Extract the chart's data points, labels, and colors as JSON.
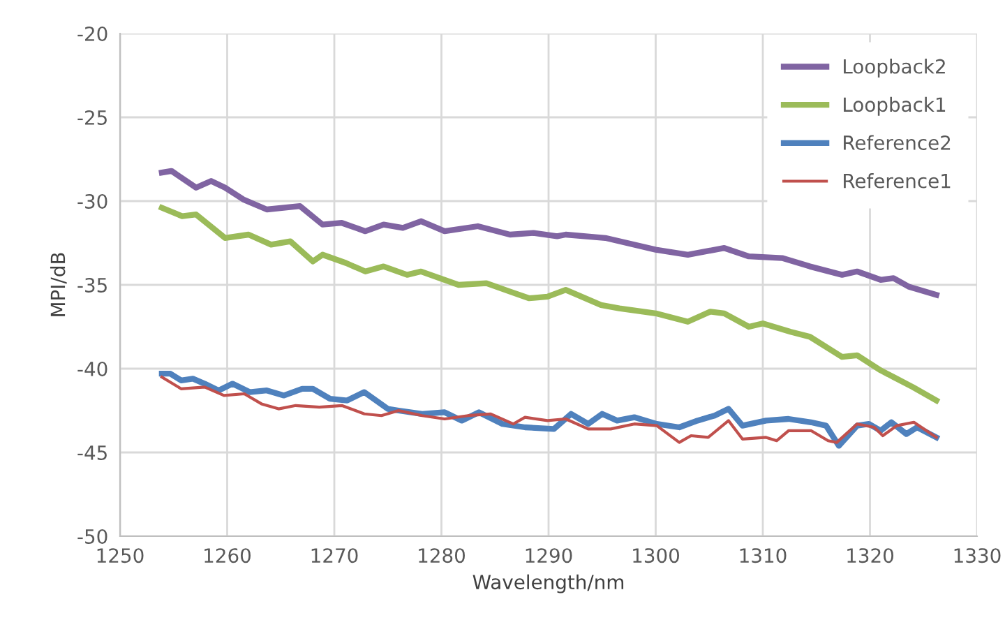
{
  "chart_data": {
    "type": "line",
    "xlabel": "Wavelength/nm",
    "ylabel": "MPI/dB",
    "xlim": [
      1250,
      1330
    ],
    "xticks": [
      1250,
      1260,
      1270,
      1280,
      1290,
      1300,
      1310,
      1320,
      1330
    ],
    "ylim": [
      -50,
      -20
    ],
    "yticks": [
      -50,
      -45,
      -40,
      -35,
      -30,
      -25,
      -20
    ],
    "grid": true,
    "legend": "top right",
    "marker": "none",
    "line_style": "solid",
    "series": [
      {
        "name": "Loopback2",
        "color": "#8064a2",
        "x": [
          1253.9,
          1254.8,
          1257.1,
          1258.5,
          1259.8,
          1261.5,
          1263.7,
          1266.8,
          1268.9,
          1270.7,
          1272.9,
          1274.6,
          1276.4,
          1278.1,
          1280.3,
          1283.4,
          1286.4,
          1288.6,
          1290.8,
          1291.6,
          1295.3,
          1300,
          1303,
          1306.4,
          1308.7,
          1311.8,
          1314.4,
          1317.4,
          1318.8,
          1321,
          1322.2,
          1323.6,
          1326.2
        ],
        "values": [
          -28.3,
          -28.2,
          -29.2,
          -28.8,
          -29.2,
          -29.9,
          -30.5,
          -30.3,
          -31.4,
          -31.3,
          -31.8,
          -31.4,
          -31.6,
          -31.2,
          -31.8,
          -31.5,
          -32.0,
          -31.9,
          -32.1,
          -32.0,
          -32.2,
          -32.9,
          -33.2,
          -32.8,
          -33.3,
          -33.4,
          -33.9,
          -34.4,
          -34.2,
          -34.7,
          -34.6,
          -35.1,
          -35.6
        ]
      },
      {
        "name": "Loopback1",
        "color": "#9bbb59",
        "x": [
          1253.9,
          1255.8,
          1257.1,
          1259.8,
          1262,
          1264.1,
          1265.9,
          1268,
          1268.9,
          1271.1,
          1272.9,
          1274.6,
          1276.8,
          1278.1,
          1281.6,
          1284.2,
          1286.4,
          1288.2,
          1289.9,
          1291.6,
          1294.9,
          1296.6,
          1300,
          1303,
          1305.1,
          1306.4,
          1308.7,
          1310,
          1312.6,
          1314.4,
          1317.4,
          1318.8,
          1321,
          1322.2,
          1324,
          1326.2
        ],
        "values": [
          -30.4,
          -30.9,
          -30.8,
          -32.2,
          -32.0,
          -32.6,
          -32.4,
          -33.6,
          -33.2,
          -33.7,
          -34.2,
          -33.9,
          -34.4,
          -34.2,
          -35.0,
          -34.9,
          -35.4,
          -35.8,
          -35.7,
          -35.3,
          -36.2,
          -36.4,
          -36.7,
          -37.2,
          -36.6,
          -36.7,
          -37.5,
          -37.3,
          -37.8,
          -38.1,
          -39.3,
          -39.2,
          -40.1,
          -40.5,
          -41.1,
          -41.9
        ]
      },
      {
        "name": "Reference2",
        "color": "#4f81bd",
        "x": [
          1253.9,
          1254.7,
          1255.7,
          1256.8,
          1257.9,
          1259.2,
          1260.5,
          1262.1,
          1263.7,
          1265.3,
          1267,
          1268,
          1269.6,
          1271.2,
          1272.8,
          1275,
          1276,
          1278.2,
          1280.3,
          1281.9,
          1283.5,
          1285.7,
          1287.8,
          1290.5,
          1292.1,
          1293.7,
          1295,
          1296.4,
          1298,
          1300.1,
          1302.2,
          1303.9,
          1305.5,
          1306.8,
          1308.1,
          1310.3,
          1312.4,
          1314.5,
          1315.9,
          1317.1,
          1318.8,
          1319.9,
          1321,
          1322,
          1323.4,
          1324.4,
          1326.2
        ],
        "values": [
          -40.3,
          -40.3,
          -40.7,
          -40.6,
          -40.9,
          -41.3,
          -40.9,
          -41.4,
          -41.3,
          -41.6,
          -41.2,
          -41.2,
          -41.8,
          -41.9,
          -41.4,
          -42.4,
          -42.5,
          -42.7,
          -42.6,
          -43.1,
          -42.6,
          -43.3,
          -43.5,
          -43.6,
          -42.7,
          -43.3,
          -42.7,
          -43.1,
          -42.9,
          -43.3,
          -43.5,
          -43.1,
          -42.8,
          -42.4,
          -43.4,
          -43.1,
          -43.0,
          -43.2,
          -43.4,
          -44.6,
          -43.4,
          -43.3,
          -43.7,
          -43.2,
          -43.9,
          -43.5,
          -44.1
        ]
      },
      {
        "name": "Reference1",
        "color": "#c0504d",
        "x": [
          1253.9,
          1255.7,
          1257.9,
          1259.7,
          1261.6,
          1263.2,
          1264.8,
          1266.4,
          1268.6,
          1270.7,
          1272.8,
          1274.4,
          1276,
          1278.2,
          1280.3,
          1282.5,
          1284.6,
          1286.7,
          1287.8,
          1289.9,
          1291.6,
          1293.7,
          1295.8,
          1298,
          1300.1,
          1302.2,
          1303.3,
          1304.9,
          1306.8,
          1308.1,
          1310.3,
          1311.3,
          1312.4,
          1314.5,
          1316.1,
          1316.9,
          1318.8,
          1320.4,
          1321.2,
          1322.5,
          1324.1,
          1326.2
        ],
        "values": [
          -40.5,
          -41.2,
          -41.1,
          -41.6,
          -41.5,
          -42.1,
          -42.4,
          -42.2,
          -42.3,
          -42.2,
          -42.7,
          -42.8,
          -42.5,
          -42.8,
          -43.0,
          -42.8,
          -42.7,
          -43.3,
          -42.9,
          -43.1,
          -43.0,
          -43.6,
          -43.6,
          -43.3,
          -43.4,
          -44.4,
          -44.0,
          -44.1,
          -43.1,
          -44.2,
          -44.1,
          -44.3,
          -43.7,
          -43.7,
          -44.3,
          -44.4,
          -43.3,
          -43.5,
          -44.0,
          -43.4,
          -43.2,
          -44.1
        ]
      }
    ]
  }
}
